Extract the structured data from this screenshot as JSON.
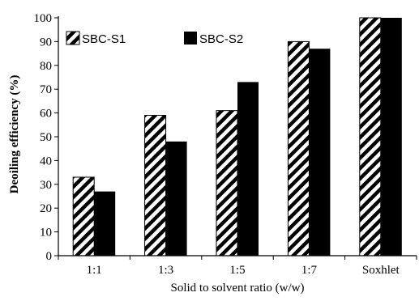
{
  "chart_data": {
    "type": "bar",
    "categories": [
      "1:1",
      "1:3",
      "1:5",
      "1:7",
      "Soxhlet"
    ],
    "series": [
      {
        "name": "SBC-S1",
        "values": [
          33,
          59,
          61,
          90,
          100
        ],
        "pattern": "diagonal-stripes"
      },
      {
        "name": "SBC-S2",
        "values": [
          27,
          48,
          73,
          87,
          100
        ],
        "pattern": "solid"
      }
    ],
    "xlabel": "Solid to solvent ratio (w/w)",
    "ylabel": "Deoiling efficiency (%)",
    "ylim": [
      0,
      100
    ],
    "yticks": [
      0,
      10,
      20,
      30,
      40,
      50,
      60,
      70,
      80,
      90,
      100
    ],
    "grid": false,
    "legend_position": "top-left",
    "colors": {
      "bar_fill": "#000000",
      "stripe_background": "#ffffff",
      "axis": "#000000"
    }
  }
}
